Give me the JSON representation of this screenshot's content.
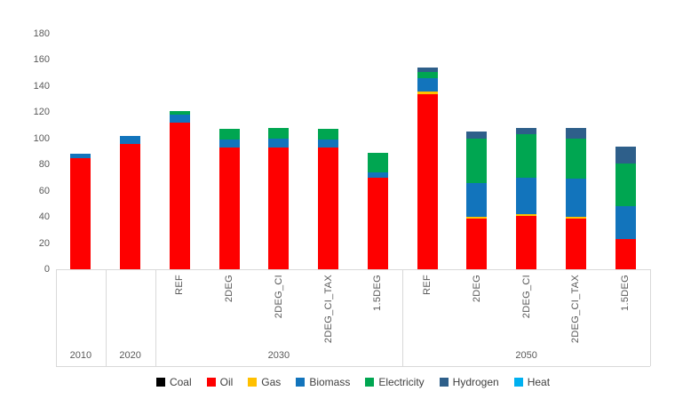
{
  "chart_data": {
    "type": "bar",
    "stacked": true,
    "title": "",
    "xlabel": "",
    "ylabel": "",
    "ylim": [
      0,
      180
    ],
    "y_ticks": [
      0,
      20,
      40,
      60,
      80,
      100,
      120,
      140,
      160,
      180
    ],
    "grid": false,
    "legend_position": "bottom",
    "series_order": [
      "Coal",
      "Oil",
      "Gas",
      "Biomass",
      "Electricity",
      "Hydrogen",
      "Heat"
    ],
    "series_colors": {
      "Coal": "#000000",
      "Oil": "#FE0000",
      "Gas": "#FFC000",
      "Biomass": "#1274BC",
      "Electricity": "#00A651",
      "Hydrogen": "#2E5F8A",
      "Heat": "#00B0F0"
    },
    "legend": [
      "Coal",
      "Oil",
      "Gas",
      "Biomass",
      "Electricity",
      "Hydrogen",
      "Heat"
    ],
    "bars": [
      {
        "group": "2010",
        "scenario": "",
        "values": {
          "Coal": 0,
          "Oil": 85,
          "Gas": 0,
          "Biomass": 3,
          "Electricity": 0,
          "Hydrogen": 0,
          "Heat": 0
        }
      },
      {
        "group": "2020",
        "scenario": "",
        "values": {
          "Coal": 0,
          "Oil": 96,
          "Gas": 0,
          "Biomass": 6,
          "Electricity": 0,
          "Hydrogen": 0,
          "Heat": 0
        }
      },
      {
        "group": "2030",
        "scenario": "REF",
        "values": {
          "Coal": 0,
          "Oil": 112,
          "Gas": 0,
          "Biomass": 6,
          "Electricity": 3,
          "Hydrogen": 0,
          "Heat": 0
        }
      },
      {
        "group": "2030",
        "scenario": "2DEG",
        "values": {
          "Coal": 0,
          "Oil": 93,
          "Gas": 0,
          "Biomass": 6,
          "Electricity": 8,
          "Hydrogen": 0,
          "Heat": 0
        }
      },
      {
        "group": "2030",
        "scenario": "2DEG_CI",
        "values": {
          "Coal": 0,
          "Oil": 93,
          "Gas": 0,
          "Biomass": 7,
          "Electricity": 8,
          "Hydrogen": 0,
          "Heat": 0
        }
      },
      {
        "group": "2030",
        "scenario": "2DEG_CI_TAX",
        "values": {
          "Coal": 0,
          "Oil": 93,
          "Gas": 0,
          "Biomass": 6,
          "Electricity": 8,
          "Hydrogen": 0,
          "Heat": 0
        }
      },
      {
        "group": "2030",
        "scenario": "1.5DEG",
        "values": {
          "Coal": 0,
          "Oil": 70,
          "Gas": 0,
          "Biomass": 4,
          "Electricity": 15,
          "Hydrogen": 0,
          "Heat": 0
        }
      },
      {
        "group": "2050",
        "scenario": "REF",
        "values": {
          "Coal": 0,
          "Oil": 134,
          "Gas": 2,
          "Biomass": 10,
          "Electricity": 5,
          "Hydrogen": 3,
          "Heat": 0
        }
      },
      {
        "group": "2050",
        "scenario": "2DEG",
        "values": {
          "Coal": 0,
          "Oil": 39,
          "Gas": 1,
          "Biomass": 26,
          "Electricity": 34,
          "Hydrogen": 5,
          "Heat": 0
        }
      },
      {
        "group": "2050",
        "scenario": "2DEG_CI",
        "values": {
          "Coal": 0,
          "Oil": 41,
          "Gas": 1,
          "Biomass": 28,
          "Electricity": 33,
          "Hydrogen": 5,
          "Heat": 0
        }
      },
      {
        "group": "2050",
        "scenario": "2DEG_CI_TAX",
        "values": {
          "Coal": 0,
          "Oil": 39,
          "Gas": 1,
          "Biomass": 29,
          "Electricity": 31,
          "Hydrogen": 8,
          "Heat": 0
        }
      },
      {
        "group": "2050",
        "scenario": "1.5DEG",
        "values": {
          "Coal": 0,
          "Oil": 23,
          "Gas": 0,
          "Biomass": 25,
          "Electricity": 33,
          "Hydrogen": 13,
          "Heat": 0
        }
      }
    ]
  }
}
